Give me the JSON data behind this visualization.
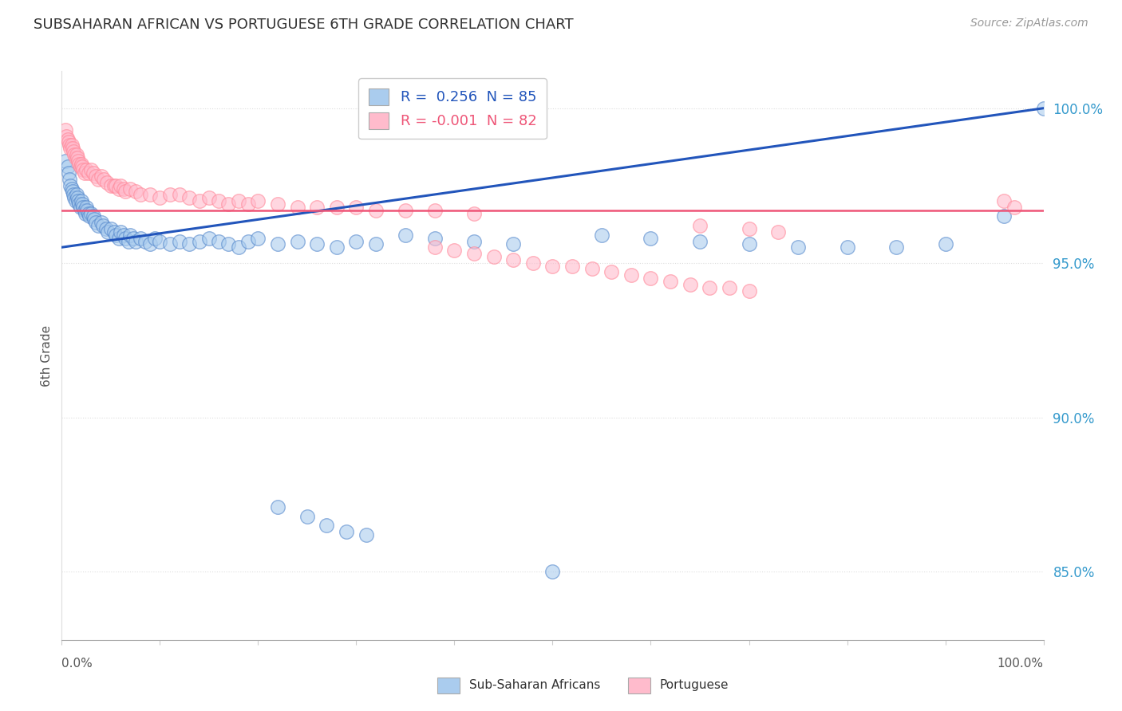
{
  "title": "SUBSAHARAN AFRICAN VS PORTUGUESE 6TH GRADE CORRELATION CHART",
  "source": "Source: ZipAtlas.com",
  "ylabel": "6th Grade",
  "legend_blue": "Sub-Saharan Africans",
  "legend_pink": "Portuguese",
  "r_blue": 0.256,
  "n_blue": 85,
  "r_pink": -0.001,
  "n_pink": 82,
  "y_ticks": [
    0.85,
    0.9,
    0.95,
    1.0
  ],
  "y_tick_labels": [
    "85.0%",
    "90.0%",
    "95.0%",
    "100.0%"
  ],
  "x_range": [
    0.0,
    1.0
  ],
  "y_range": [
    0.828,
    1.012
  ],
  "blue_fill": "#AACCEE",
  "blue_edge": "#5588CC",
  "blue_line": "#2255BB",
  "pink_fill": "#FFBBCC",
  "pink_edge": "#FF8899",
  "pink_line": "#EE5577",
  "grid_color": "#DDDDDD",
  "title_color": "#333333",
  "source_color": "#999999",
  "blue_x": [
    0.004,
    0.006,
    0.007,
    0.008,
    0.009,
    0.01,
    0.011,
    0.012,
    0.013,
    0.014,
    0.015,
    0.016,
    0.017,
    0.018,
    0.019,
    0.02,
    0.021,
    0.022,
    0.023,
    0.024,
    0.025,
    0.026,
    0.027,
    0.028,
    0.03,
    0.032,
    0.033,
    0.035,
    0.037,
    0.04,
    0.042,
    0.045,
    0.047,
    0.05,
    0.053,
    0.055,
    0.058,
    0.06,
    0.063,
    0.065,
    0.068,
    0.07,
    0.073,
    0.075,
    0.08,
    0.085,
    0.09,
    0.095,
    0.1,
    0.11,
    0.12,
    0.13,
    0.14,
    0.15,
    0.16,
    0.17,
    0.18,
    0.19,
    0.2,
    0.22,
    0.24,
    0.26,
    0.28,
    0.3,
    0.32,
    0.22,
    0.25,
    0.27,
    0.29,
    0.31,
    0.35,
    0.38,
    0.42,
    0.46,
    0.5,
    0.55,
    0.6,
    0.65,
    0.7,
    0.75,
    0.8,
    0.85,
    0.9,
    0.96,
    1.0
  ],
  "blue_y": [
    0.983,
    0.981,
    0.979,
    0.977,
    0.975,
    0.974,
    0.973,
    0.972,
    0.971,
    0.97,
    0.972,
    0.971,
    0.97,
    0.969,
    0.968,
    0.97,
    0.969,
    0.968,
    0.967,
    0.966,
    0.968,
    0.967,
    0.966,
    0.965,
    0.966,
    0.965,
    0.964,
    0.963,
    0.962,
    0.963,
    0.962,
    0.961,
    0.96,
    0.961,
    0.96,
    0.959,
    0.958,
    0.96,
    0.959,
    0.958,
    0.957,
    0.959,
    0.958,
    0.957,
    0.958,
    0.957,
    0.956,
    0.958,
    0.957,
    0.956,
    0.957,
    0.956,
    0.957,
    0.958,
    0.957,
    0.956,
    0.955,
    0.957,
    0.958,
    0.956,
    0.957,
    0.956,
    0.955,
    0.957,
    0.956,
    0.871,
    0.868,
    0.865,
    0.863,
    0.862,
    0.959,
    0.958,
    0.957,
    0.956,
    0.85,
    0.959,
    0.958,
    0.957,
    0.956,
    0.955,
    0.955,
    0.955,
    0.956,
    0.965,
    1.0
  ],
  "pink_x": [
    0.004,
    0.005,
    0.006,
    0.007,
    0.008,
    0.009,
    0.01,
    0.011,
    0.012,
    0.013,
    0.014,
    0.015,
    0.016,
    0.017,
    0.018,
    0.019,
    0.02,
    0.021,
    0.022,
    0.023,
    0.025,
    0.027,
    0.03,
    0.032,
    0.035,
    0.037,
    0.04,
    0.043,
    0.046,
    0.05,
    0.053,
    0.055,
    0.058,
    0.06,
    0.063,
    0.065,
    0.07,
    0.075,
    0.08,
    0.09,
    0.1,
    0.11,
    0.12,
    0.13,
    0.14,
    0.15,
    0.16,
    0.17,
    0.18,
    0.19,
    0.2,
    0.22,
    0.24,
    0.26,
    0.28,
    0.3,
    0.32,
    0.35,
    0.38,
    0.42,
    0.38,
    0.4,
    0.42,
    0.44,
    0.46,
    0.48,
    0.5,
    0.52,
    0.54,
    0.56,
    0.58,
    0.6,
    0.62,
    0.64,
    0.66,
    0.68,
    0.7,
    0.65,
    0.7,
    0.73,
    0.96,
    0.97
  ],
  "pink_y": [
    0.993,
    0.991,
    0.99,
    0.989,
    0.988,
    0.987,
    0.988,
    0.987,
    0.986,
    0.985,
    0.984,
    0.985,
    0.984,
    0.983,
    0.982,
    0.981,
    0.982,
    0.981,
    0.98,
    0.979,
    0.98,
    0.979,
    0.98,
    0.979,
    0.978,
    0.977,
    0.978,
    0.977,
    0.976,
    0.975,
    0.975,
    0.975,
    0.974,
    0.975,
    0.974,
    0.973,
    0.974,
    0.973,
    0.972,
    0.972,
    0.971,
    0.972,
    0.972,
    0.971,
    0.97,
    0.971,
    0.97,
    0.969,
    0.97,
    0.969,
    0.97,
    0.969,
    0.968,
    0.968,
    0.968,
    0.968,
    0.967,
    0.967,
    0.967,
    0.966,
    0.955,
    0.954,
    0.953,
    0.952,
    0.951,
    0.95,
    0.949,
    0.949,
    0.948,
    0.947,
    0.946,
    0.945,
    0.944,
    0.943,
    0.942,
    0.942,
    0.941,
    0.962,
    0.961,
    0.96,
    0.97,
    0.968
  ]
}
